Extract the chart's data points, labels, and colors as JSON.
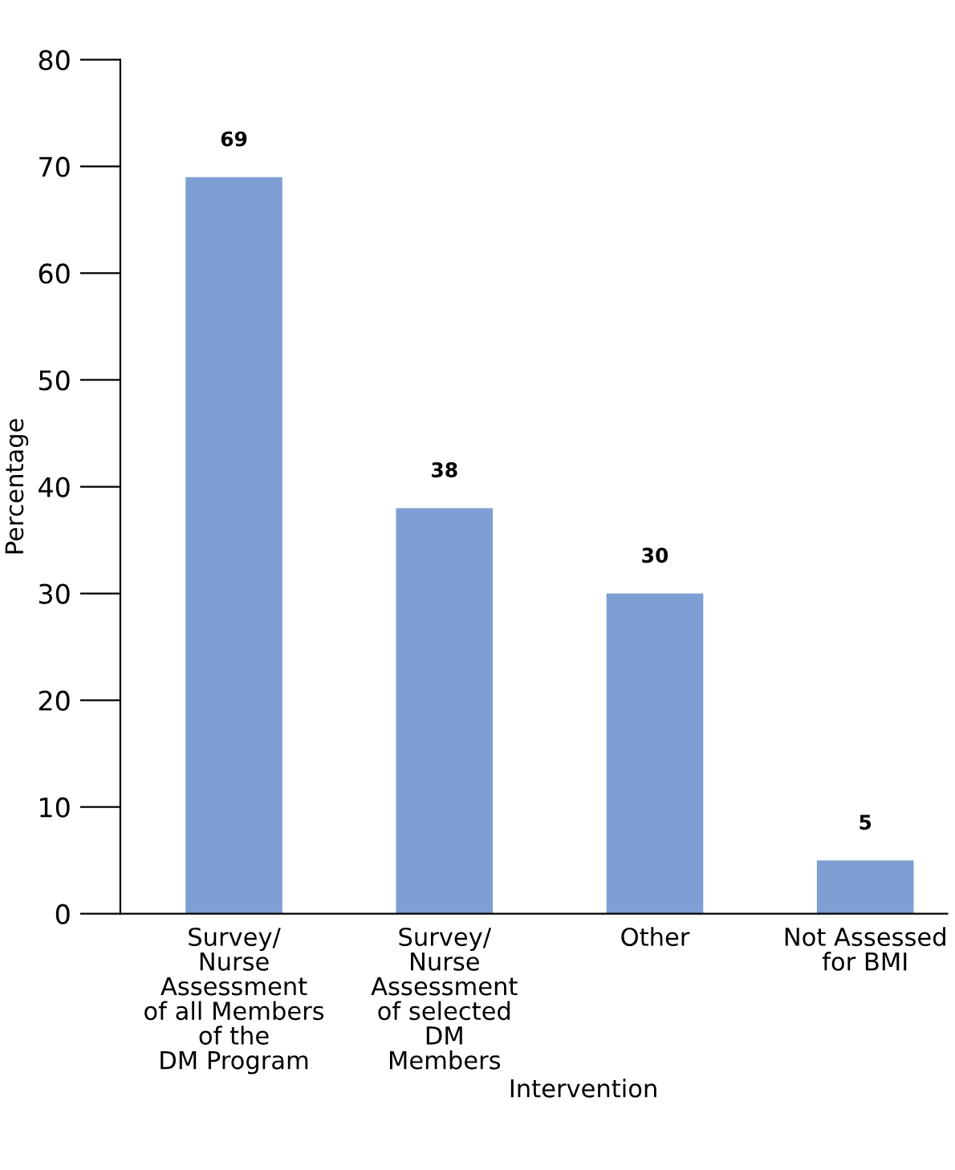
{
  "chart_data": {
    "type": "bar",
    "xlabel": "Intervention",
    "ylabel": "Percentage",
    "categories": [
      "Survey/\nNurse\nAssessment\nof all Members\nof the\nDM Program",
      "Survey/\nNurse\nAssessment\nof selected\nDM\nMembers",
      "Other",
      "Not Assessed\nfor BMI"
    ],
    "values": [
      69,
      38,
      30,
      5
    ],
    "color": "#7f9fd4",
    "ylim": [
      0,
      80
    ],
    "yticks": [
      0,
      10,
      20,
      30,
      40,
      50,
      60,
      70,
      80
    ],
    "grid": false,
    "data_labels": true
  }
}
